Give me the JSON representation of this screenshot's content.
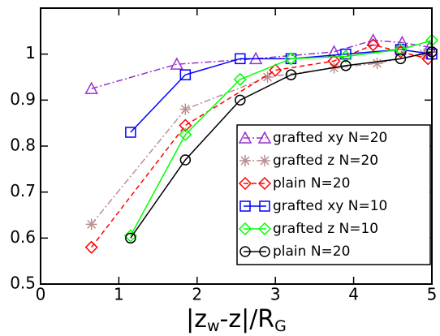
{
  "chart_data": {
    "type": "line",
    "xlabel_parts": [
      "|z",
      "w",
      "-z|/R",
      "G"
    ],
    "xlim": [
      0,
      5
    ],
    "xticks": [
      0,
      1,
      2,
      3,
      4,
      5
    ],
    "ylim": [
      0.5,
      1.1
    ],
    "yticks": [
      0.5,
      0.6,
      0.7,
      0.8,
      0.9,
      1
    ],
    "legend": "lower right",
    "series": [
      {
        "name": "grafted xy N=20",
        "color": "#9932cc",
        "marker": "triangle",
        "dash": "8 3 2 3",
        "x": [
          0.65,
          1.74,
          2.75,
          3.75,
          4.25,
          4.62,
          4.97
        ],
        "values": [
          0.925,
          0.978,
          0.99,
          1.005,
          1.03,
          1.025,
          1.015
        ]
      },
      {
        "name": "grafted z N=20",
        "color": "#bc8f8f",
        "marker": "star",
        "dash": "8 3 2 3",
        "x": [
          0.65,
          1.85,
          2.9,
          3.75,
          4.3,
          4.9
        ],
        "values": [
          0.63,
          0.88,
          0.95,
          0.97,
          0.98,
          1.0
        ]
      },
      {
        "name": "plain N=20",
        "color": "#ff0000",
        "marker": "diamond",
        "dash": "6 4",
        "x": [
          0.65,
          1.85,
          3.0,
          3.75,
          4.25,
          4.6,
          4.95
        ],
        "values": [
          0.58,
          0.845,
          0.965,
          0.985,
          1.02,
          1.005,
          0.99
        ]
      },
      {
        "name": "grafted xy N=10",
        "color": "#0000ff",
        "marker": "square",
        "dash": "",
        "x": [
          1.15,
          1.85,
          2.55,
          3.2,
          3.9,
          4.6,
          5.0
        ],
        "values": [
          0.83,
          0.955,
          0.99,
          0.99,
          1.0,
          1.01,
          1.0
        ]
      },
      {
        "name": "grafted z N=10",
        "color": "#00ff00",
        "marker": "diamond",
        "dash": "",
        "x": [
          1.15,
          1.85,
          2.55,
          3.2,
          3.9,
          4.6,
          5.0
        ],
        "values": [
          0.605,
          0.825,
          0.945,
          0.99,
          0.995,
          1.01,
          1.03
        ]
      },
      {
        "name": "plain N=20",
        "color": "#000000",
        "marker": "circle",
        "dash": "",
        "x": [
          1.15,
          1.85,
          2.55,
          3.2,
          3.9,
          4.6,
          5.0
        ],
        "values": [
          0.6,
          0.77,
          0.9,
          0.955,
          0.975,
          0.99,
          1.005
        ]
      }
    ]
  }
}
